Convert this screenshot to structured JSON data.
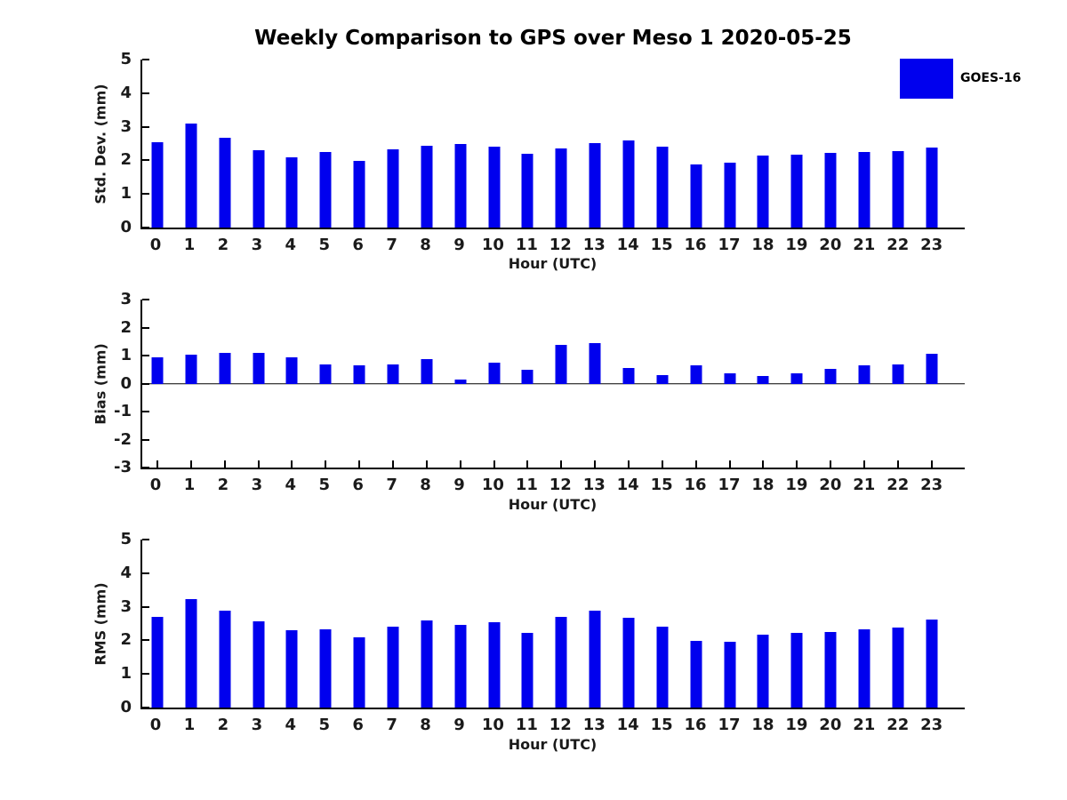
{
  "title": "Weekly Comparison to GPS over Meso 1 2020-05-25",
  "legend": {
    "label": "GOES-16",
    "color": "#0000EE",
    "position": "top-right"
  },
  "chart_data": [
    {
      "type": "bar",
      "title": "",
      "ylabel": "Std. Dev. (mm)",
      "xlabel": "Hour (UTC)",
      "ylim": [
        0,
        5
      ],
      "yticks": [
        0,
        1,
        2,
        3,
        4,
        5
      ],
      "grid": false,
      "bottom_ticks": false,
      "categories": [
        "0",
        "1",
        "2",
        "3",
        "4",
        "5",
        "6",
        "7",
        "8",
        "9",
        "10",
        "11",
        "12",
        "13",
        "14",
        "15",
        "16",
        "17",
        "18",
        "19",
        "20",
        "21",
        "22",
        "23"
      ],
      "series": [
        {
          "name": "GOES-16",
          "values": [
            2.54,
            3.09,
            2.68,
            2.3,
            2.1,
            2.24,
            1.99,
            2.34,
            2.43,
            2.48,
            2.41,
            2.19,
            2.35,
            2.51,
            2.59,
            2.41,
            1.88,
            1.94,
            2.15,
            2.17,
            2.21,
            2.25,
            2.28,
            2.37
          ]
        }
      ]
    },
    {
      "type": "bar",
      "title": "",
      "ylabel": "Bias (mm)",
      "xlabel": "Hour (UTC)",
      "ylim": [
        -3,
        3
      ],
      "yticks": [
        -3,
        -2,
        -1,
        0,
        1,
        2,
        3
      ],
      "grid": false,
      "bottom_ticks": true,
      "zero_line": true,
      "categories": [
        "0",
        "1",
        "2",
        "3",
        "4",
        "5",
        "6",
        "7",
        "8",
        "9",
        "10",
        "11",
        "12",
        "13",
        "14",
        "15",
        "16",
        "17",
        "18",
        "19",
        "20",
        "21",
        "22",
        "23"
      ],
      "series": [
        {
          "name": "GOES-16",
          "values": [
            0.93,
            1.02,
            1.11,
            1.11,
            0.95,
            0.67,
            0.65,
            0.67,
            0.88,
            0.15,
            0.76,
            0.48,
            1.38,
            1.45,
            0.56,
            0.31,
            0.64,
            0.38,
            0.27,
            0.38,
            0.52,
            0.66,
            0.69,
            1.06
          ]
        }
      ]
    },
    {
      "type": "bar",
      "title": "",
      "ylabel": "RMS (mm)",
      "xlabel": "Hour (UTC)",
      "ylim": [
        0,
        5
      ],
      "yticks": [
        0,
        1,
        2,
        3,
        4,
        5
      ],
      "grid": false,
      "bottom_ticks": false,
      "categories": [
        "0",
        "1",
        "2",
        "3",
        "4",
        "5",
        "6",
        "7",
        "8",
        "9",
        "10",
        "11",
        "12",
        "13",
        "14",
        "15",
        "16",
        "17",
        "18",
        "19",
        "20",
        "21",
        "22",
        "23"
      ],
      "series": [
        {
          "name": "GOES-16",
          "values": [
            2.7,
            3.23,
            2.89,
            2.56,
            2.3,
            2.34,
            2.1,
            2.42,
            2.58,
            2.47,
            2.53,
            2.21,
            2.7,
            2.88,
            2.66,
            2.42,
            1.98,
            1.97,
            2.16,
            2.21,
            2.24,
            2.32,
            2.38,
            2.62
          ]
        }
      ]
    }
  ]
}
